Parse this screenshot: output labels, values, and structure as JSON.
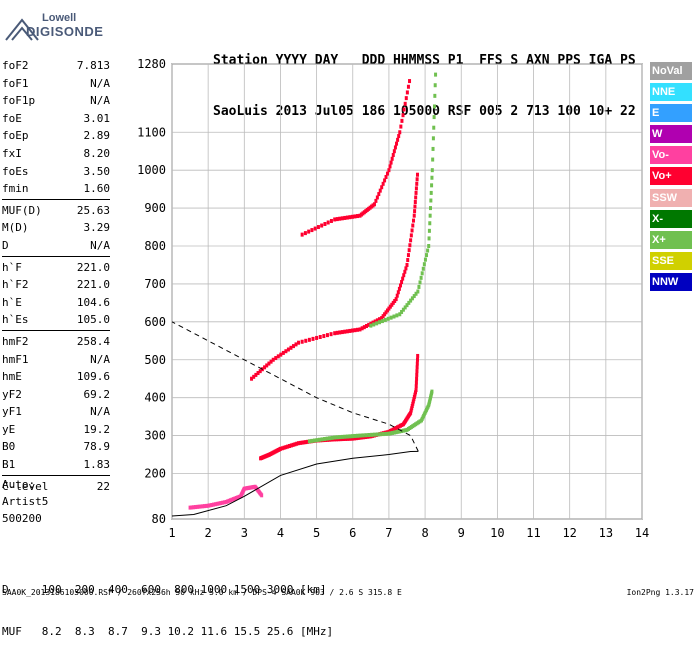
{
  "logo": {
    "line1": "Lowell",
    "line2": "DIGISONDE"
  },
  "header": {
    "line1": "Station YYYY DAY   DDD HHMMSS P1  FFS S AXN PPS IGA PS",
    "line2": "SaoLuis 2013 Jul05 186 105000 RSF 005 2 713 100 10+ 22"
  },
  "params": [
    {
      "name": "foF2",
      "value": "7.813"
    },
    {
      "name": "foF1",
      "value": "N/A"
    },
    {
      "name": "foF1p",
      "value": "N/A"
    },
    {
      "name": "foE",
      "value": "3.01"
    },
    {
      "name": "foEp",
      "value": "2.89"
    },
    {
      "name": "fxI",
      "value": "8.20"
    },
    {
      "name": "foEs",
      "value": "3.50"
    },
    {
      "name": "fmin",
      "value": "1.60"
    },
    {
      "name": "MUF(D)",
      "value": "25.63",
      "sep": true
    },
    {
      "name": "M(D)",
      "value": "3.29"
    },
    {
      "name": "D",
      "value": "N/A"
    },
    {
      "name": "h`F",
      "value": "221.0",
      "sep": true
    },
    {
      "name": "h`F2",
      "value": "221.0"
    },
    {
      "name": "h`E",
      "value": "104.6"
    },
    {
      "name": "h`Es",
      "value": "105.0"
    },
    {
      "name": "hmF2",
      "value": "258.4",
      "sep": true
    },
    {
      "name": "hmF1",
      "value": "N/A"
    },
    {
      "name": "hmE",
      "value": "109.6"
    },
    {
      "name": "yF2",
      "value": "69.2"
    },
    {
      "name": "yF1",
      "value": "N/A"
    },
    {
      "name": "yE",
      "value": "19.2"
    },
    {
      "name": "B0",
      "value": "78.9"
    },
    {
      "name": "B1",
      "value": "1.83"
    },
    {
      "name": "C-level",
      "value": "22",
      "sep": true
    }
  ],
  "auto": {
    "line1": "Auto:",
    "line2": "Artist5",
    "line3": "500200"
  },
  "legend": [
    {
      "label": "NoVal",
      "color": "#a0a0a0"
    },
    {
      "label": "NNE",
      "color": "#33e0ff"
    },
    {
      "label": "E",
      "color": "#33a0ff"
    },
    {
      "label": "W",
      "color": "#b000b0"
    },
    {
      "label": "Vo-",
      "color": "#ff40a0"
    },
    {
      "label": "Vo+",
      "color": "#ff0030"
    },
    {
      "label": "SSW",
      "color": "#f0b0b0"
    },
    {
      "label": "X-",
      "color": "#007800"
    },
    {
      "label": "X+",
      "color": "#70c050"
    },
    {
      "label": "SSE",
      "color": "#d0d000"
    },
    {
      "label": "NNW",
      "color": "#0000c0"
    }
  ],
  "bottom": {
    "line1": "D     100  200  400  600  800 1000 1500 3000 [km]",
    "line2": "MUF   8.2  8.3  8.7  9.3 10.2 11.6 15.5 25.6 [MHz]"
  },
  "footer": {
    "left": "SAA0K_2013186105000.RSF / 260fx256h 50 kHz 5.0 km / DPS-4 SAA0K 903 / 2.6 S 315.8 E",
    "right": "Ion2Png 1.3.17"
  },
  "chart_data": {
    "type": "scatter",
    "xlabel": "",
    "ylabel": "",
    "xlim": [
      1,
      14
    ],
    "ylim": [
      80,
      1280
    ],
    "x_ticks": [
      1,
      2,
      3,
      4,
      5,
      6,
      7,
      8,
      9,
      10,
      11,
      12,
      13,
      14
    ],
    "y_ticks": [
      80,
      200,
      300,
      400,
      500,
      600,
      700,
      800,
      900,
      1000,
      1100,
      1280
    ],
    "grid": true,
    "series": [
      {
        "name": "Vo+",
        "color": "#ff0030",
        "points": [
          [
            3.45,
            240
          ],
          [
            3.7,
            250
          ],
          [
            4.0,
            265
          ],
          [
            4.5,
            280
          ],
          [
            5.0,
            287
          ],
          [
            5.5,
            290
          ],
          [
            6.0,
            292
          ],
          [
            6.5,
            298
          ],
          [
            7.0,
            310
          ],
          [
            7.4,
            330
          ],
          [
            7.6,
            360
          ],
          [
            7.75,
            420
          ],
          [
            7.8,
            520
          ]
        ]
      },
      {
        "name": "Vo+",
        "color": "#ff0030",
        "points": [
          [
            3.2,
            450
          ],
          [
            3.8,
            500
          ],
          [
            4.5,
            545
          ],
          [
            5.5,
            570
          ],
          [
            6.2,
            580
          ],
          [
            6.8,
            610
          ],
          [
            7.2,
            660
          ],
          [
            7.5,
            750
          ],
          [
            7.7,
            880
          ],
          [
            7.8,
            1000
          ]
        ]
      },
      {
        "name": "Vo+",
        "color": "#ff0030",
        "points": [
          [
            4.6,
            830
          ],
          [
            5.5,
            870
          ],
          [
            6.2,
            880
          ],
          [
            6.6,
            910
          ],
          [
            7.0,
            1000
          ],
          [
            7.3,
            1100
          ],
          [
            7.6,
            1250
          ]
        ]
      },
      {
        "name": "X+",
        "color": "#70c050",
        "points": [
          [
            4.8,
            285
          ],
          [
            5.5,
            295
          ],
          [
            6.2,
            300
          ],
          [
            7.0,
            305
          ],
          [
            7.5,
            315
          ],
          [
            7.9,
            340
          ],
          [
            8.1,
            380
          ],
          [
            8.2,
            420
          ]
        ]
      },
      {
        "name": "X+",
        "color": "#70c050",
        "points": [
          [
            6.5,
            590
          ],
          [
            7.3,
            620
          ],
          [
            7.8,
            680
          ],
          [
            8.1,
            800
          ],
          [
            8.2,
            1000
          ],
          [
            8.3,
            1280
          ]
        ]
      },
      {
        "name": "Vo-",
        "color": "#ff40a0",
        "points": [
          [
            1.5,
            110
          ],
          [
            2.0,
            115
          ],
          [
            2.5,
            125
          ],
          [
            2.9,
            140
          ],
          [
            3.0,
            160
          ],
          [
            3.3,
            165
          ],
          [
            3.5,
            140
          ]
        ]
      }
    ],
    "profile_solid": [
      [
        1.0,
        88
      ],
      [
        1.6,
        92
      ],
      [
        2.5,
        115
      ],
      [
        3.0,
        140
      ],
      [
        4.0,
        195
      ],
      [
        5.0,
        225
      ],
      [
        6.0,
        240
      ],
      [
        7.0,
        250
      ],
      [
        7.6,
        258
      ],
      [
        7.813,
        258.4
      ]
    ],
    "profile_dashed": [
      [
        7.813,
        258.4
      ],
      [
        7.6,
        300
      ],
      [
        7.0,
        330
      ],
      [
        6.0,
        360
      ],
      [
        5.0,
        400
      ],
      [
        4.0,
        450
      ],
      [
        3.0,
        500
      ],
      [
        2.0,
        550
      ],
      [
        1.0,
        600
      ]
    ]
  }
}
